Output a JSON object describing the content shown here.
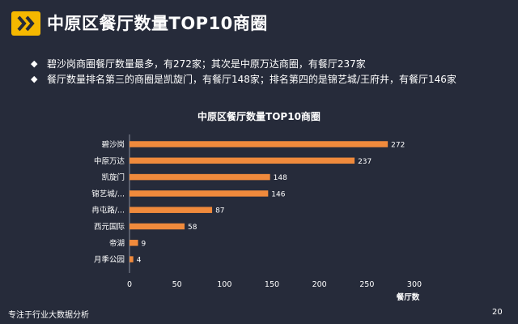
{
  "header": {
    "title": "中原区餐厅数量TOP10商圈"
  },
  "bullets": [
    "碧沙岗商圈餐厅数量最多，有272家；其次是中原万达商圈，有餐厅237家",
    "餐厅数量排名第三的商圈是凯旋门，有餐厅148家；排名第四的是锦艺城/王府井，有餐厅146家"
  ],
  "footer": {
    "left": "专注于行业大数据分析",
    "page": "20"
  },
  "colors": {
    "background": "#262b3a",
    "bar": "#f08a3c",
    "logo_bg": "#f5b800",
    "axis": "#8a8f9c"
  },
  "chart_data": {
    "type": "bar",
    "orientation": "horizontal",
    "title": "中原区餐厅数量TOP10商圈",
    "categories": [
      "碧沙岗",
      "中原万达",
      "凯旋门",
      "锦艺城/...",
      "冉屯路/...",
      "西元国际",
      "帝湖",
      "月季公园"
    ],
    "values": [
      272,
      237,
      148,
      146,
      87,
      58,
      9,
      4
    ],
    "xlabel": "餐厅数",
    "ylabel": "",
    "xlim": [
      0,
      300
    ],
    "xticks": [
      0,
      50,
      100,
      150,
      200,
      250,
      300
    ],
    "data_labels": true,
    "grid": false
  }
}
